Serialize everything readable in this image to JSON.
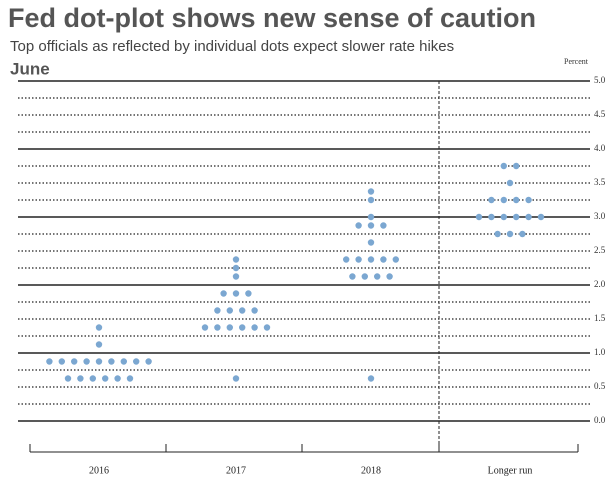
{
  "chart_data": {
    "type": "dot",
    "title": "Fed dot-plot shows new sense of caution",
    "subtitle": "Top officials as reflected by individual dots expect slower rate hikes",
    "panel_label": "June",
    "y_axis_label": "Percent",
    "categories": [
      "2016",
      "2017",
      "2018",
      "Longer run"
    ],
    "x": [
      "2016",
      "2016",
      "2016",
      "2016",
      "2016",
      "2016",
      "2016",
      "2016",
      "2016",
      "2016",
      "2016",
      "2016",
      "2016",
      "2016",
      "2016",
      "2016",
      "2016",
      "2017",
      "2017",
      "2017",
      "2017",
      "2017",
      "2017",
      "2017",
      "2017",
      "2017",
      "2017",
      "2017",
      "2017",
      "2017",
      "2017",
      "2017",
      "2017",
      "2017",
      "2018",
      "2018",
      "2018",
      "2018",
      "2018",
      "2018",
      "2018",
      "2018",
      "2018",
      "2018",
      "2018",
      "2018",
      "2018",
      "2018",
      "2018",
      "2018",
      "2018",
      "Longer run",
      "Longer run",
      "Longer run",
      "Longer run",
      "Longer run",
      "Longer run",
      "Longer run",
      "Longer run",
      "Longer run",
      "Longer run",
      "Longer run",
      "Longer run",
      "Longer run",
      "Longer run",
      "Longer run",
      "Longer run"
    ],
    "y": [
      0.625,
      0.625,
      0.625,
      0.625,
      0.625,
      0.625,
      0.875,
      0.875,
      0.875,
      0.875,
      0.875,
      0.875,
      0.875,
      0.875,
      0.875,
      1.125,
      1.375,
      0.625,
      1.375,
      1.375,
      1.375,
      1.375,
      1.375,
      1.375,
      1.625,
      1.625,
      1.625,
      1.625,
      1.875,
      1.875,
      1.875,
      2.125,
      2.25,
      2.375,
      0.625,
      2.125,
      2.125,
      2.125,
      2.125,
      2.375,
      2.375,
      2.375,
      2.375,
      2.375,
      2.625,
      2.875,
      2.875,
      2.875,
      3.0,
      3.25,
      3.375,
      2.75,
      2.75,
      2.75,
      3.0,
      3.0,
      3.0,
      3.0,
      3.0,
      3.0,
      3.25,
      3.25,
      3.25,
      3.25,
      3.5,
      3.75,
      3.75
    ],
    "color": "#7ba7d1",
    "ylim": [
      0,
      5
    ],
    "yticks": [
      {
        "value": 0,
        "label": "0.0"
      },
      0.5,
      {
        "value": 1,
        "label": "1.0"
      },
      1.5,
      {
        "value": 2,
        "label": "2.0"
      },
      2.5,
      {
        "value": 3,
        "label": "3.0"
      },
      3.5,
      {
        "value": 4,
        "label": "4.0"
      },
      4.5,
      {
        "value": 5,
        "label": "5.0"
      }
    ],
    "yticks_minor": [
      0.25,
      0.75,
      1.25,
      1.75,
      2.25,
      2.75,
      3.25,
      3.75,
      4.25,
      4.75
    ],
    "grid": true
  }
}
